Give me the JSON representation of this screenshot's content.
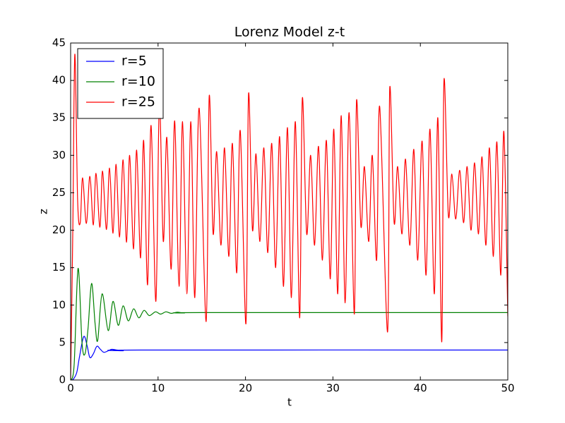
{
  "chart_data": {
    "type": "line",
    "title": "Lorenz Model z-t",
    "x_label": "t",
    "y_label": "z",
    "xlim": [
      0,
      50
    ],
    "ylim": [
      0,
      45
    ],
    "xticks": [
      0,
      10,
      20,
      30,
      40,
      50
    ],
    "yticks": [
      0,
      5,
      10,
      15,
      20,
      25,
      30,
      35,
      40,
      45
    ],
    "grid": false,
    "legend": "upper left",
    "series": [
      {
        "name": "r=5",
        "color": "#0000ff",
        "x": [
          0,
          0.3,
          0.7,
          1.0,
          1.5,
          1.9,
          2.2,
          2.6,
          3.0,
          3.4,
          3.8,
          4.3,
          4.7,
          5.3,
          6,
          8,
          50
        ],
        "values": [
          0,
          0.1,
          1,
          3,
          5.8,
          4.5,
          3,
          3.5,
          4.5,
          4.1,
          3.7,
          3.9,
          4.1,
          4.0,
          3.9,
          4.0,
          4.0
        ]
      },
      {
        "name": "r=10",
        "color": "#008000",
        "x": [
          0,
          0.4,
          0.85,
          1.3,
          1.65,
          2.0,
          2.4,
          2.8,
          3.1,
          3.6,
          4.3,
          4.85,
          5.45,
          6.0,
          6.6,
          7.2,
          7.8,
          8.4,
          9.0,
          9.7,
          10.3,
          10.9,
          11.5,
          12.2,
          13,
          15,
          50
        ],
        "values": [
          0,
          2,
          14.9,
          5,
          3.5,
          7,
          12.9,
          7.5,
          5.3,
          11.5,
          6.6,
          10.5,
          7.3,
          9.9,
          7.9,
          9.5,
          8.3,
          9.3,
          8.6,
          9.1,
          8.8,
          9.1,
          8.9,
          9.05,
          8.95,
          9,
          9
        ]
      },
      {
        "name": "r=25",
        "color": "#ff0000",
        "x": [
          0,
          0.25,
          0.48,
          0.8,
          1.1,
          1.37,
          1.8,
          2.2,
          2.6,
          2.9,
          3.35,
          3.65,
          4.1,
          4.45,
          4.85,
          5.2,
          5.6,
          6.0,
          6.4,
          6.75,
          7.2,
          7.55,
          8.0,
          8.35,
          8.8,
          9.2,
          9.75,
          10.15,
          10.6,
          11.0,
          11.5,
          11.9,
          12.4,
          12.8,
          13.3,
          13.75,
          14.2,
          14.7,
          15.5,
          15.85,
          16.3,
          16.7,
          17.2,
          17.6,
          18.1,
          18.5,
          19.0,
          19.4,
          20.05,
          20.35,
          20.8,
          21.2,
          21.65,
          22.1,
          22.55,
          23.0,
          23.45,
          23.9,
          24.35,
          24.8,
          25.25,
          25.7,
          26.2,
          26.5,
          27.0,
          27.45,
          27.9,
          28.35,
          28.8,
          29.25,
          29.7,
          30.1,
          30.55,
          30.95,
          31.4,
          31.85,
          32.45,
          32.7,
          33.2,
          33.6,
          34.1,
          34.5,
          35.0,
          35.35,
          36.25,
          36.5,
          37.0,
          37.4,
          37.9,
          38.3,
          38.8,
          39.25,
          39.7,
          40.2,
          40.65,
          41.1,
          41.6,
          42.0,
          42.45,
          42.7,
          43.2,
          43.6,
          44.05,
          44.5,
          44.95,
          45.35,
          45.8,
          46.2,
          46.65,
          47.05,
          47.5,
          47.9,
          48.35,
          48.75,
          49.2,
          49.55,
          50
        ],
        "values": [
          0,
          20,
          43.5,
          24,
          21,
          27,
          20.9,
          27.2,
          20.7,
          27.6,
          20.4,
          27.9,
          20.1,
          28.3,
          19.6,
          28.8,
          19.1,
          29.4,
          18.4,
          30,
          17.5,
          30.7,
          16.3,
          32,
          12.7,
          34,
          10.5,
          37,
          18.5,
          32.4,
          14.8,
          34.6,
          12.5,
          34.5,
          11.5,
          34.5,
          11,
          36.3,
          7.8,
          37.9,
          19.5,
          30.5,
          18,
          31,
          16.5,
          31.6,
          14.3,
          33.3,
          7.5,
          38.2,
          20,
          30.2,
          18.5,
          31,
          17,
          31.6,
          15,
          32.5,
          12.5,
          33.7,
          11,
          34.5,
          8.3,
          37.6,
          19.5,
          30,
          18,
          31.2,
          16,
          32,
          13.5,
          33.5,
          11.5,
          35.3,
          10.3,
          35.7,
          8.8,
          37.3,
          20.5,
          28.5,
          18.5,
          30,
          16,
          36.5,
          6.4,
          39,
          21,
          28.5,
          19.5,
          29.5,
          18,
          30.8,
          16,
          31.9,
          14,
          33.5,
          11.5,
          35,
          5.1,
          40,
          22,
          27.5,
          21.5,
          28,
          21,
          28.5,
          20,
          29,
          19.5,
          29.8,
          18,
          31,
          16.5,
          31.8,
          14,
          33.2,
          8.5
        ]
      }
    ]
  }
}
